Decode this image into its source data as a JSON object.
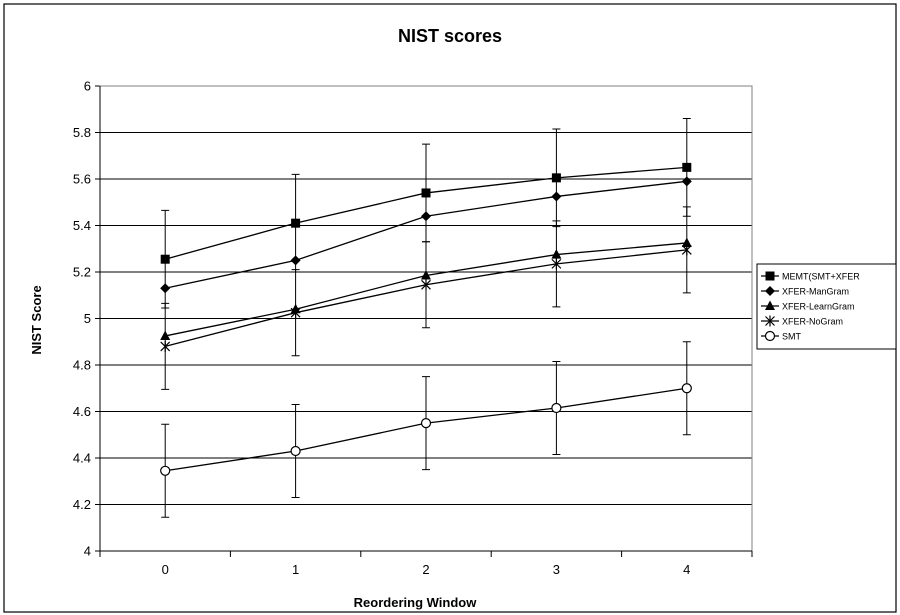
{
  "chart_data": {
    "type": "line",
    "title": "NIST scores",
    "xlabel": "Reordering Window",
    "ylabel": "NIST Score",
    "x": [
      0,
      1,
      2,
      3,
      4
    ],
    "ylim": [
      4,
      6
    ],
    "yticks": [
      4,
      4.2,
      4.4,
      4.6,
      4.8,
      5,
      5.2,
      5.4,
      5.6,
      5.8,
      6
    ],
    "ytick_labels": [
      "4",
      "4.2",
      "4.4",
      "4.6",
      "4.8",
      "5",
      "5.2",
      "5.4",
      "5.6",
      "5.8",
      "6"
    ],
    "xtick_labels": [
      "0",
      "1",
      "2",
      "3",
      "4"
    ],
    "grid": "horizontal",
    "legend": "right",
    "series": [
      {
        "name": "MEMT(SMT+XFER",
        "marker": "square",
        "values": [
          5.255,
          5.41,
          5.54,
          5.605,
          5.65
        ],
        "errors": [
          0.21,
          0.21,
          0.21,
          0.21,
          0.21
        ]
      },
      {
        "name": "XFER-ManGram",
        "marker": "diamond",
        "values": [
          5.13,
          5.25,
          5.44,
          5.525,
          5.59
        ],
        "errors": [
          0,
          0,
          0,
          0,
          0
        ]
      },
      {
        "name": "XFER-LearnGram",
        "marker": "triangle",
        "values": [
          4.925,
          5.04,
          5.185,
          5.275,
          5.325
        ],
        "errors": [
          0,
          0,
          0,
          0,
          0
        ]
      },
      {
        "name": "XFER-NoGram",
        "marker": "star",
        "values": [
          4.88,
          5.025,
          5.145,
          5.235,
          5.295
        ],
        "errors": [
          0.185,
          0.185,
          0.185,
          0.185,
          0.185
        ]
      },
      {
        "name": "SMT",
        "marker": "circle",
        "values": [
          4.345,
          4.43,
          4.55,
          4.615,
          4.7
        ],
        "errors": [
          0.2,
          0.2,
          0.2,
          0.2,
          0.2
        ]
      }
    ]
  }
}
